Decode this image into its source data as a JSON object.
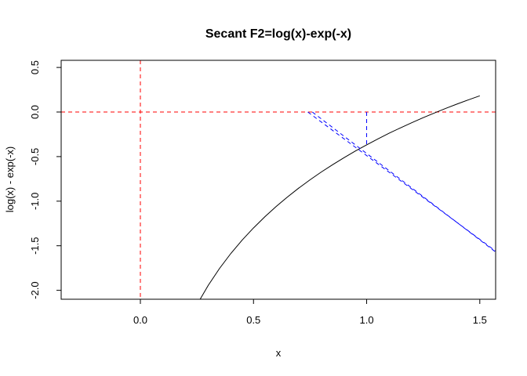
{
  "chart_data": {
    "type": "line",
    "title": "Secant F2=log(x)-exp(-x)",
    "xlabel": "x",
    "ylabel": "log(x) - exp(-x)",
    "xlim": [
      -0.35,
      1.57
    ],
    "ylim": [
      -2.1,
      0.58
    ],
    "xticks": [
      {
        "value": 0.0,
        "label": "0.0"
      },
      {
        "value": 0.5,
        "label": "0.5"
      },
      {
        "value": 1.0,
        "label": "1.0"
      },
      {
        "value": 1.5,
        "label": "1.5"
      }
    ],
    "yticks": [
      {
        "value": -2.0,
        "label": "-2.0"
      },
      {
        "value": -1.5,
        "label": "-1.5"
      },
      {
        "value": -1.0,
        "label": "-1.0"
      },
      {
        "value": -0.5,
        "label": "-0.5"
      },
      {
        "value": 0.0,
        "label": "0.0"
      },
      {
        "value": 0.5,
        "label": "0.5"
      }
    ],
    "grid": false,
    "series": [
      {
        "color": "#000000",
        "style": "solid",
        "x": [
          0.26,
          0.3,
          0.35,
          0.4,
          0.45,
          0.5,
          0.55,
          0.6,
          0.65,
          0.7,
          0.75,
          0.8,
          0.85,
          0.9,
          0.95,
          1.0,
          1.05,
          1.1,
          1.15,
          1.2,
          1.25,
          1.3,
          1.35,
          1.4,
          1.45,
          1.5
        ],
        "y": [
          -2.118,
          -1.944,
          -1.754,
          -1.586,
          -1.436,
          -1.3,
          -1.175,
          -1.06,
          -0.953,
          -0.853,
          -0.76,
          -0.672,
          -0.59,
          -0.512,
          -0.438,
          -0.368,
          -0.301,
          -0.237,
          -0.177,
          -0.119,
          -0.063,
          -0.01,
          0.041,
          0.09,
          0.137,
          0.182
        ]
      }
    ],
    "reference_lines": [
      {
        "orientation": "horizontal",
        "value": 0.0,
        "color": "#ff0000",
        "style": "dashed"
      },
      {
        "orientation": "vertical",
        "value": 0.0,
        "color": "#ff0000",
        "style": "dashed"
      }
    ],
    "secant_lines": [
      {
        "color": "#0000ff",
        "style": "dashed",
        "x": [
          1.0,
          1.0
        ],
        "y": [
          0.0,
          -0.368
        ]
      },
      {
        "color": "#0000ff",
        "style": "dashed",
        "x": [
          0.76,
          1.57
        ],
        "y": [
          0.0,
          -1.57
        ]
      },
      {
        "color": "#0000ff",
        "style": "dashed",
        "x": [
          0.74,
          1.57
        ],
        "y": [
          0.0,
          -1.56
        ]
      }
    ]
  }
}
